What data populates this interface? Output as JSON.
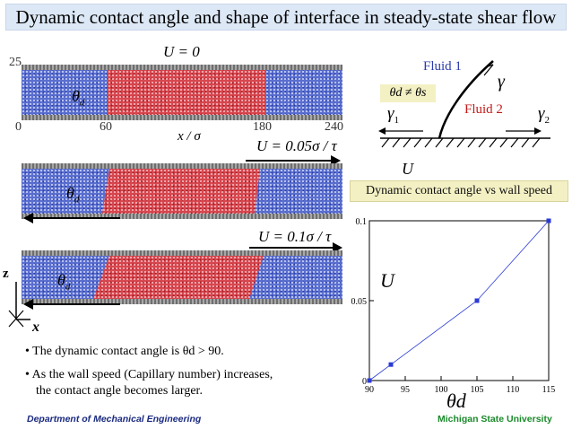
{
  "title": "Dynamic contact angle and shape of interface in steady-state shear flow",
  "panels": [
    {
      "speed_label": "U = 0"
    },
    {
      "speed_label": "U = 0.05σ / τ"
    },
    {
      "speed_label": "U = 0.1σ / τ"
    }
  ],
  "top_axis": {
    "y_max_label": "25",
    "x_ticks": [
      "0",
      "60",
      "180",
      "240"
    ],
    "x_label": "x / σ"
  },
  "theta_label": "θ",
  "theta_sub": "d",
  "axes_labels": {
    "z": "z",
    "x": "x"
  },
  "schematic": {
    "fluid1": "Fluid 1",
    "fluid2": "Fluid 2",
    "gamma": "γ",
    "gamma1": "γ",
    "gamma1_sub": "1",
    "gamma2": "γ",
    "gamma2_sub": "2",
    "inequality": "θd ≠ θs",
    "wall_speed": "U"
  },
  "bullets": [
    "• The dynamic contact angle is θd > 90.",
    "• As the wall speed (Capillary number) increases,",
    "the contact angle becomes larger."
  ],
  "plot_caption": "Dynamic contact angle vs wall speed",
  "chart_data": {
    "type": "line",
    "title": "Dynamic contact angle vs wall speed",
    "xlabel": "θd",
    "ylabel": "U",
    "x_ticks": [
      "90",
      "95",
      "100",
      "105",
      "110",
      "115"
    ],
    "y_ticks": [
      "0",
      "0.05",
      "0.1"
    ],
    "xlim": [
      90,
      115
    ],
    "ylim": [
      0,
      0.1
    ],
    "series": [
      {
        "x": [
          90,
          93,
          105,
          115
        ],
        "y": [
          0,
          0.01,
          0.05,
          0.1
        ]
      }
    ],
    "color": "#2a3ad6",
    "grid": false
  },
  "footer": {
    "left": "Department of Mechanical Engineering",
    "right": "Michigan State University"
  }
}
